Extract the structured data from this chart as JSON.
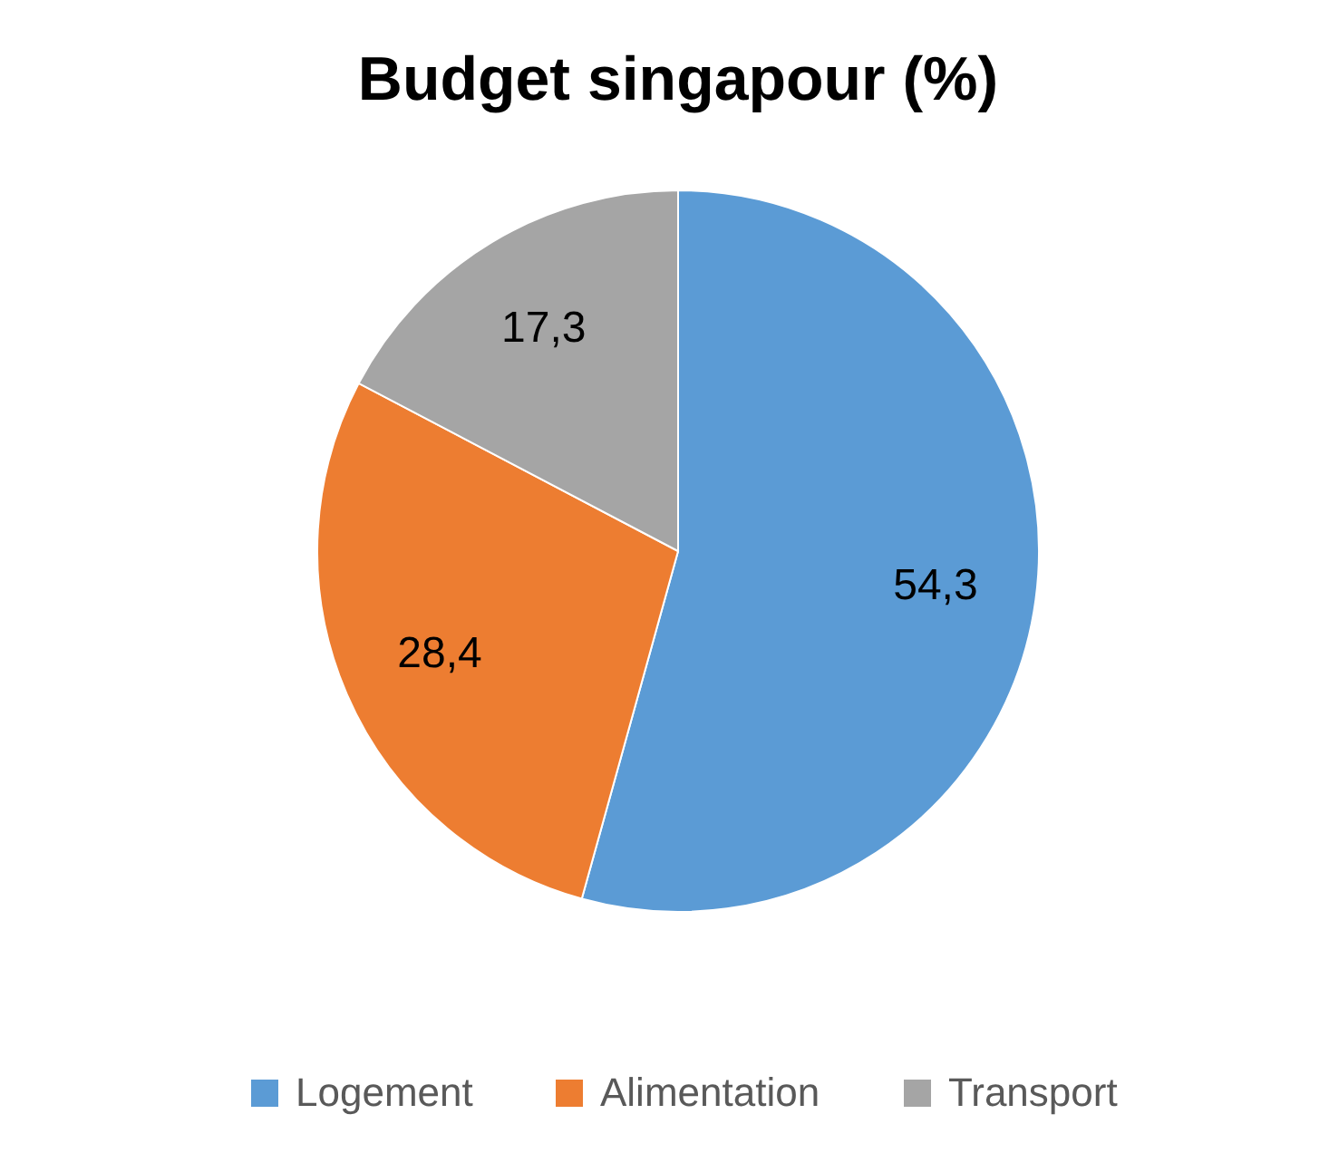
{
  "chart_data": {
    "type": "pie",
    "title": "Budget singapour (%)",
    "categories": [
      "Logement",
      "Alimentation",
      "Transport"
    ],
    "values": [
      54.3,
      28.4,
      17.3
    ],
    "colors": [
      "#5b9bd5",
      "#ed7d31",
      "#a5a5a5"
    ],
    "value_labels": [
      "54,3",
      "28,4",
      "17,3"
    ],
    "legend": "bottom"
  }
}
